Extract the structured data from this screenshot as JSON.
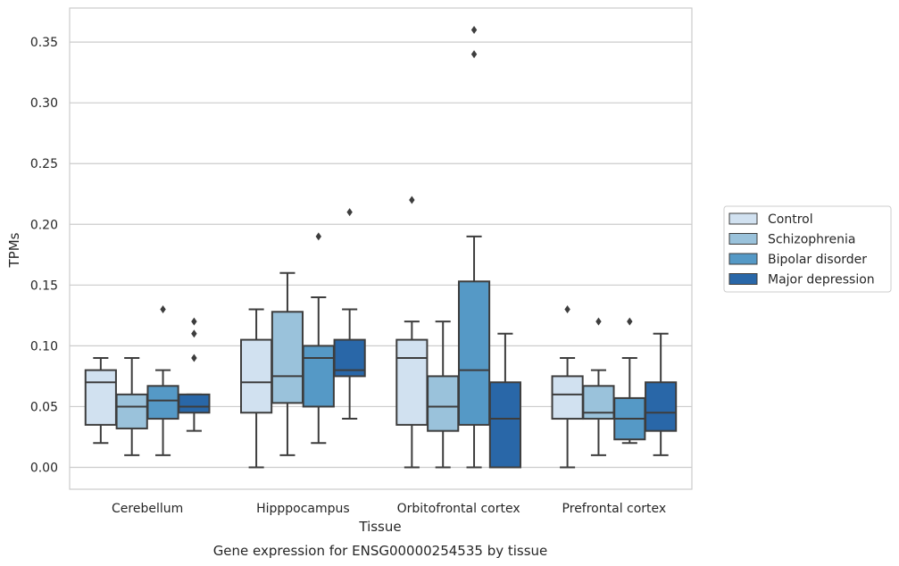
{
  "chart_data": {
    "type": "box",
    "title": "",
    "caption": "Gene expression for ENSG00000254535 by tissue",
    "xlabel": "Tissue",
    "ylabel": "TPMs",
    "ylim": [
      -0.018,
      0.378
    ],
    "yticks": [
      "0.00",
      "0.05",
      "0.10",
      "0.15",
      "0.20",
      "0.25",
      "0.30",
      "0.35"
    ],
    "ytick_values": [
      0,
      0.05,
      0.1,
      0.15,
      0.2,
      0.25,
      0.3,
      0.35
    ],
    "grid": "horizontal",
    "legend_position": "right",
    "categories": [
      "Cerebellum",
      "Hipppocampus",
      "Orbitofrontal cortex",
      "Prefrontal cortex"
    ],
    "series": [
      {
        "name": "Control",
        "color": "#d1e1f0",
        "boxes": [
          {
            "whislo": 0.02,
            "q1": 0.035,
            "med": 0.07,
            "q3": 0.08,
            "whishi": 0.09,
            "fliers": []
          },
          {
            "whislo": 0.0,
            "q1": 0.045,
            "med": 0.07,
            "q3": 0.105,
            "whishi": 0.13,
            "fliers": []
          },
          {
            "whislo": 0.0,
            "q1": 0.035,
            "med": 0.09,
            "q3": 0.105,
            "whishi": 0.12,
            "fliers": [
              0.22
            ]
          },
          {
            "whislo": 0.0,
            "q1": 0.04,
            "med": 0.06,
            "q3": 0.075,
            "whishi": 0.09,
            "fliers": [
              0.13
            ]
          }
        ]
      },
      {
        "name": "Schizophrenia",
        "color": "#9ac2db",
        "boxes": [
          {
            "whislo": 0.01,
            "q1": 0.032,
            "med": 0.05,
            "q3": 0.06,
            "whishi": 0.09,
            "fliers": []
          },
          {
            "whislo": 0.01,
            "q1": 0.053,
            "med": 0.075,
            "q3": 0.128,
            "whishi": 0.16,
            "fliers": []
          },
          {
            "whislo": 0.0,
            "q1": 0.03,
            "med": 0.05,
            "q3": 0.075,
            "whishi": 0.12,
            "fliers": []
          },
          {
            "whislo": 0.01,
            "q1": 0.04,
            "med": 0.045,
            "q3": 0.067,
            "whishi": 0.08,
            "fliers": [
              0.12
            ]
          }
        ]
      },
      {
        "name": "Bipolar disorder",
        "color": "#5599c6",
        "boxes": [
          {
            "whislo": 0.01,
            "q1": 0.04,
            "med": 0.055,
            "q3": 0.067,
            "whishi": 0.08,
            "fliers": [
              0.13
            ]
          },
          {
            "whislo": 0.02,
            "q1": 0.05,
            "med": 0.09,
            "q3": 0.1,
            "whishi": 0.14,
            "fliers": [
              0.19
            ]
          },
          {
            "whislo": 0.0,
            "q1": 0.035,
            "med": 0.08,
            "q3": 0.153,
            "whishi": 0.19,
            "fliers": [
              0.34,
              0.36
            ]
          },
          {
            "whislo": 0.02,
            "q1": 0.023,
            "med": 0.04,
            "q3": 0.057,
            "whishi": 0.09,
            "fliers": [
              0.12
            ]
          }
        ]
      },
      {
        "name": "Major depression",
        "color": "#2967a8",
        "boxes": [
          {
            "whislo": 0.03,
            "q1": 0.045,
            "med": 0.05,
            "q3": 0.06,
            "whishi": 0.06,
            "fliers": [
              0.09,
              0.11,
              0.12
            ]
          },
          {
            "whislo": 0.04,
            "q1": 0.075,
            "med": 0.08,
            "q3": 0.105,
            "whishi": 0.13,
            "fliers": [
              0.21
            ]
          },
          {
            "whislo": 0.0,
            "q1": 0.0,
            "med": 0.04,
            "q3": 0.07,
            "whishi": 0.11,
            "fliers": []
          },
          {
            "whislo": 0.01,
            "q1": 0.03,
            "med": 0.045,
            "q3": 0.07,
            "whishi": 0.11,
            "fliers": []
          }
        ]
      }
    ]
  }
}
